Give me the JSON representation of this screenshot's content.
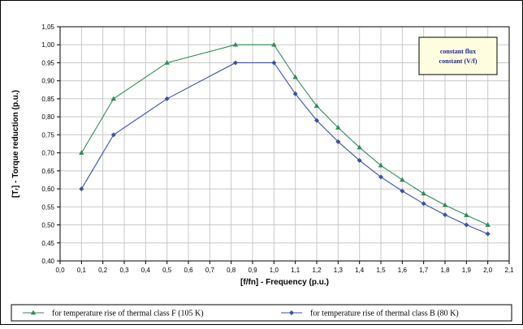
{
  "chart_data": {
    "type": "line",
    "title": "",
    "xlabel": "[f/fn] - Frequency (p.u.)",
    "ylabel": "[Tᵣ] - Torque reduction (p.u.)",
    "xlim": [
      0,
      2.1
    ],
    "ylim": [
      0.4,
      1.05
    ],
    "x_ticks": [
      "0,0",
      "0,1",
      "0,2",
      "0,3",
      "0,4",
      "0,5",
      "0,6",
      "0,7",
      "0,8",
      "0,9",
      "1,0",
      "1,1",
      "1,2",
      "1,3",
      "1,4",
      "1,5",
      "1,6",
      "1,7",
      "1,8",
      "1,9",
      "2,0",
      "2,1"
    ],
    "y_ticks": [
      "0,40",
      "0,45",
      "0,50",
      "0,55",
      "0,60",
      "0,65",
      "0,70",
      "0,75",
      "0,80",
      "0,85",
      "0,90",
      "0,95",
      "1,00",
      "1,05"
    ],
    "grid": true,
    "legend_position": "bottom",
    "series": [
      {
        "name": "for temperature rise of thermal class F (105 K)",
        "color": "#2e8b57",
        "marker": "triangle",
        "x": [
          0.1,
          0.25,
          0.5,
          0.82,
          1.0,
          1.1,
          1.2,
          1.3,
          1.4,
          1.5,
          1.6,
          1.7,
          1.8,
          1.9,
          2.0
        ],
        "y": [
          0.7,
          0.85,
          0.95,
          1.0,
          1.0,
          0.91,
          0.83,
          0.77,
          0.715,
          0.665,
          0.625,
          0.587,
          0.555,
          0.527,
          0.5
        ]
      },
      {
        "name": "for temperature rise of thermal class B (80 K)",
        "color": "#3b4fa8",
        "marker": "diamond",
        "x": [
          0.1,
          0.25,
          0.5,
          0.82,
          1.0,
          1.1,
          1.2,
          1.3,
          1.4,
          1.5,
          1.6,
          1.7,
          1.8,
          1.9,
          2.0
        ],
        "y": [
          0.6,
          0.75,
          0.85,
          0.95,
          0.95,
          0.864,
          0.79,
          0.731,
          0.679,
          0.633,
          0.594,
          0.559,
          0.528,
          0.5,
          0.475
        ]
      }
    ],
    "annotation": [
      "constant flux",
      "constant (V/f)"
    ]
  }
}
